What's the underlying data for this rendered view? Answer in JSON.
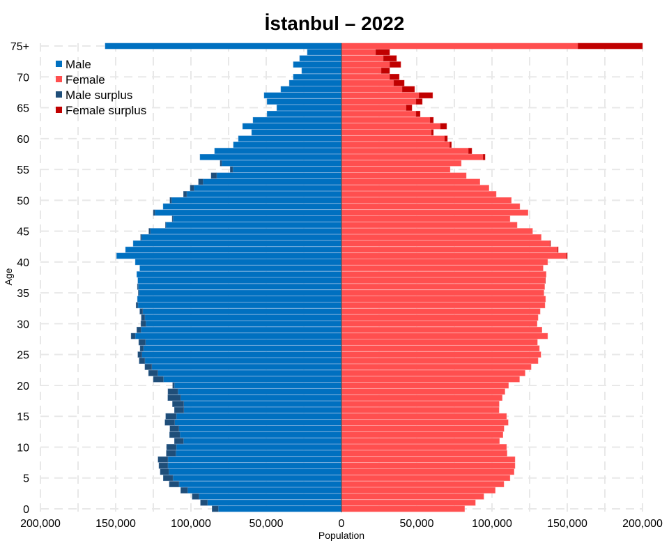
{
  "chart_data": {
    "type": "bar",
    "orientation": "horizontal-pyramid",
    "title": "İstanbul – 2022",
    "xlabel": "Population",
    "ylabel": "Age",
    "xlim": [
      -200000,
      200000
    ],
    "x_tick_labels": [
      "200,000",
      "150,000",
      "100,000",
      "50,000",
      "0",
      "50,000",
      "100,000",
      "150,000",
      "200,000"
    ],
    "x_tick_values": [
      -200000,
      -150000,
      -100000,
      -50000,
      0,
      50000,
      100000,
      150000,
      200000
    ],
    "y_tick_labels": [
      "0",
      "5",
      "10",
      "15",
      "20",
      "25",
      "30",
      "35",
      "40",
      "45",
      "50",
      "55",
      "60",
      "65",
      "70",
      "75+"
    ],
    "grid": true,
    "legend_placement": "top-left",
    "categories": [
      "0",
      "1",
      "2",
      "3",
      "4",
      "5",
      "6",
      "7",
      "8",
      "9",
      "10",
      "11",
      "12",
      "13",
      "14",
      "15",
      "16",
      "17",
      "18",
      "19",
      "20",
      "21",
      "22",
      "23",
      "24",
      "25",
      "26",
      "27",
      "28",
      "29",
      "30",
      "31",
      "32",
      "33",
      "34",
      "35",
      "36",
      "37",
      "38",
      "39",
      "40",
      "41",
      "42",
      "43",
      "44",
      "45",
      "46",
      "47",
      "48",
      "49",
      "50",
      "51",
      "52",
      "53",
      "54",
      "55",
      "56",
      "57",
      "58",
      "59",
      "60",
      "61",
      "62",
      "63",
      "64",
      "65",
      "66",
      "67",
      "68",
      "69",
      "70",
      "71",
      "72",
      "73",
      "74",
      "75+"
    ],
    "series": [
      {
        "name": "Male",
        "color": "#0070c0",
        "values": [
          86000,
          93700,
          99200,
          106800,
          114400,
          118400,
          120400,
          121300,
          121900,
          116400,
          116200,
          111000,
          114200,
          114000,
          117300,
          116800,
          111000,
          112300,
          115400,
          115300,
          112200,
          125000,
          128200,
          130600,
          134400,
          135300,
          133800,
          134700,
          139800,
          136000,
          133300,
          133000,
          134000,
          136500,
          135600,
          135000,
          135600,
          135300,
          136000,
          134000,
          137000,
          149400,
          143500,
          138400,
          133500,
          128000,
          117000,
          112500,
          125000,
          118500,
          114000,
          105000,
          100500,
          95000,
          86600,
          74000,
          80600,
          94000,
          84300,
          71800,
          68500,
          59700,
          65700,
          58800,
          49500,
          43000,
          49500,
          51400,
          40300,
          34700,
          32000,
          26400,
          32000,
          27800,
          22700,
          157000
        ]
      },
      {
        "name": "Female",
        "color": "#ff4f4f",
        "values": [
          81800,
          89000,
          94600,
          102200,
          107900,
          112000,
          114700,
          115300,
          115300,
          110000,
          109700,
          105000,
          107300,
          108000,
          110800,
          109700,
          104700,
          104800,
          106800,
          108600,
          111000,
          118300,
          122000,
          126000,
          130600,
          132500,
          131500,
          130200,
          137000,
          133200,
          130000,
          130600,
          132000,
          135200,
          135600,
          134500,
          135000,
          135500,
          136000,
          134000,
          137000,
          150000,
          144000,
          138900,
          132700,
          127000,
          116700,
          112000,
          124000,
          118500,
          112900,
          102800,
          98000,
          92000,
          82900,
          72200,
          79600,
          95400,
          86600,
          73100,
          70400,
          61100,
          69900,
          61100,
          52300,
          46800,
          53700,
          60600,
          48600,
          41700,
          38400,
          32000,
          39400,
          36600,
          32000,
          200000
        ]
      }
    ],
    "legend": [
      {
        "label": "Male",
        "color": "#0070c0"
      },
      {
        "label": "Female",
        "color": "#ff4f4f"
      },
      {
        "label": "Male surplus",
        "color": "#1f4e79"
      },
      {
        "label": "Female surplus",
        "color": "#c00000"
      }
    ]
  }
}
